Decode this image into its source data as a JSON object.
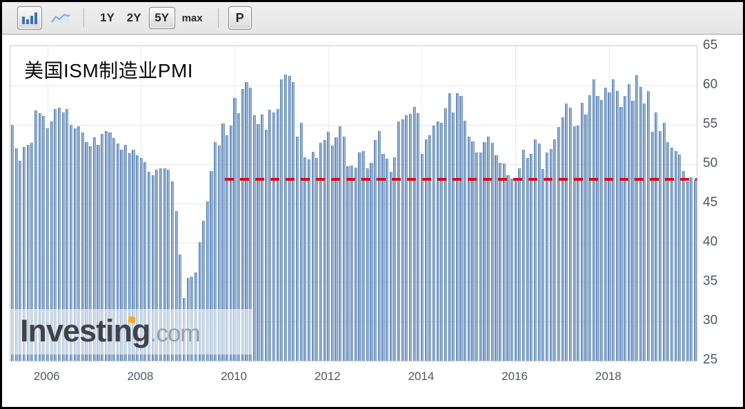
{
  "toolbar": {
    "chart_type_buttons": [
      {
        "name": "bar-chart",
        "selected": true
      },
      {
        "name": "line-chart",
        "selected": false
      }
    ],
    "range_buttons": [
      {
        "label": "1Y",
        "selected": false
      },
      {
        "label": "2Y",
        "selected": false
      },
      {
        "label": "5Y",
        "selected": true
      },
      {
        "label": "max",
        "selected": false
      }
    ],
    "p_button_label": "P"
  },
  "watermark": {
    "brand": "Investing",
    "suffix": ".com",
    "dot_color": "#f7a823"
  },
  "chart_data": {
    "type": "bar",
    "title": "美国ISM制造业PMI",
    "frequency": "monthly",
    "start_month": "2005-04",
    "end_month": "2019-11",
    "ylim": [
      25,
      65
    ],
    "y_axis_side": "right",
    "grid": true,
    "bar_color": "#6089ba",
    "y_ticks": [
      65,
      60,
      55,
      50,
      45,
      40,
      35,
      30,
      25
    ],
    "x_tick_labels": [
      "2006",
      "2008",
      "2010",
      "2012",
      "2014",
      "2016",
      "2018"
    ],
    "reference_line": {
      "value": 48.1,
      "color": "#e30613",
      "style": "dashed",
      "starts_at": "2009-11"
    },
    "values": [
      55.0,
      52.0,
      50.4,
      52.2,
      52.5,
      52.7,
      56.8,
      56.5,
      56.1,
      54.6,
      55.4,
      57.0,
      57.2,
      56.6,
      57.0,
      55.0,
      54.6,
      54.8,
      54.0,
      52.8,
      52.3,
      53.4,
      52.5,
      53.9,
      54.2,
      54.0,
      53.3,
      52.6,
      51.8,
      52.5,
      51.4,
      51.8,
      51.1,
      50.8,
      50.3,
      49.0,
      48.6,
      49.3,
      49.5,
      49.5,
      49.3,
      47.8,
      44.0,
      38.5,
      33.0,
      35.5,
      35.7,
      36.2,
      40.1,
      42.8,
      45.3,
      49.1,
      52.8,
      52.4,
      55.2,
      53.7,
      54.9,
      58.4,
      56.5,
      59.6,
      60.4,
      59.7,
      56.2,
      55.1,
      56.3,
      54.4,
      56.9,
      56.6,
      57.0,
      60.8,
      61.4,
      61.2,
      60.4,
      53.5,
      55.3,
      50.9,
      50.6,
      51.6,
      50.8,
      52.7,
      53.1,
      54.1,
      52.4,
      53.4,
      54.8,
      53.5,
      49.7,
      49.8,
      49.6,
      51.5,
      51.7,
      49.5,
      50.2,
      53.1,
      54.2,
      51.3,
      50.7,
      49.0,
      50.9,
      55.4,
      55.7,
      56.2,
      56.4,
      57.3,
      56.5,
      51.3,
      53.2,
      53.7,
      54.9,
      55.4,
      55.3,
      57.1,
      59.0,
      56.6,
      59.0,
      58.7,
      55.5,
      53.5,
      52.9,
      51.5,
      51.5,
      52.8,
      53.5,
      52.7,
      51.1,
      50.2,
      50.1,
      48.6,
      48.2,
      48.2,
      49.5,
      51.8,
      50.8,
      51.3,
      53.2,
      52.6,
      49.4,
      51.5,
      51.9,
      53.2,
      54.7,
      56.0,
      57.7,
      57.2,
      54.8,
      54.9,
      57.8,
      56.3,
      58.8,
      60.8,
      58.7,
      58.2,
      59.7,
      59.1,
      60.8,
      59.3,
      57.3,
      58.7,
      60.2,
      58.1,
      61.3,
      59.8,
      57.7,
      59.3,
      54.1,
      56.6,
      54.2,
      55.3,
      52.8,
      52.1,
      51.7,
      51.2,
      49.1,
      47.8,
      48.3,
      48.1
    ]
  }
}
